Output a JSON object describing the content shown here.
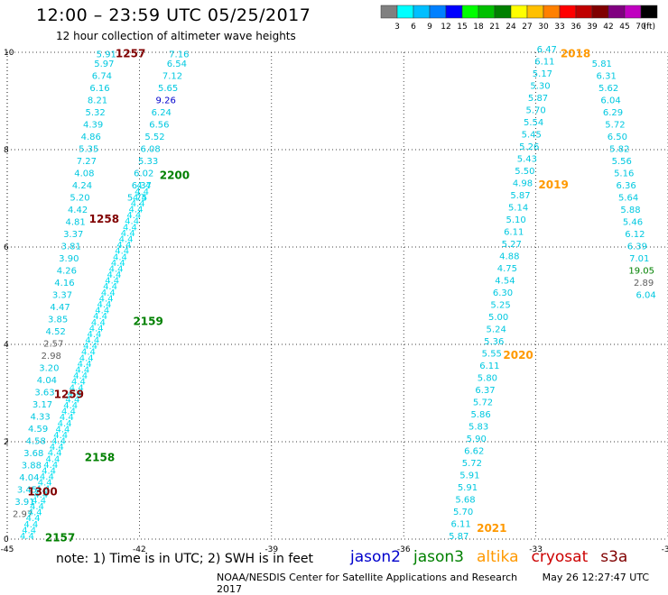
{
  "header": {
    "title": "12:00 – 23:59 UTC 05/25/2017",
    "subtitle": "12 hour collection of altimeter wave heights"
  },
  "colorbar": {
    "unit": "(ft)",
    "ticks": [
      "3",
      "6",
      "9",
      "12",
      "15",
      "18",
      "21",
      "24",
      "27",
      "30",
      "33",
      "36",
      "39",
      "42",
      "45",
      "70"
    ],
    "colors": [
      "#808080",
      "#00ffff",
      "#00bfff",
      "#0080ff",
      "#0000ff",
      "#00ff00",
      "#00c000",
      "#008000",
      "#ffff00",
      "#ffc000",
      "#ff8000",
      "#ff0000",
      "#c00000",
      "#800000",
      "#800080",
      "#c000c0",
      "#000000"
    ]
  },
  "chart_data": {
    "type": "scatter",
    "title": "12:00 – 23:59 UTC 05/25/2017",
    "xlim": [
      -45,
      -30
    ],
    "ylim": [
      0,
      10
    ],
    "x_ticks": [
      "-45",
      "-42",
      "-39",
      "-36",
      "-33",
      "-30"
    ],
    "y_ticks": [
      "0",
      "2",
      "4",
      "6",
      "8",
      "10"
    ],
    "grid": "dotted",
    "time_labels": [
      {
        "text": "1257",
        "x": -42.2,
        "y": 9.9,
        "color": "#800000"
      },
      {
        "text": "1258",
        "x": -42.8,
        "y": 6.5,
        "color": "#800000"
      },
      {
        "text": "1259",
        "x": -43.6,
        "y": 2.9,
        "color": "#800000"
      },
      {
        "text": "1300",
        "x": -44.2,
        "y": 0.9,
        "color": "#800000"
      },
      {
        "text": "2200",
        "x": -41.2,
        "y": 7.4,
        "color": "#008000"
      },
      {
        "text": "2159",
        "x": -41.8,
        "y": 4.4,
        "color": "#008000"
      },
      {
        "text": "2158",
        "x": -42.9,
        "y": 1.6,
        "color": "#008000"
      },
      {
        "text": "2157",
        "x": -43.8,
        "y": -0.05,
        "color": "#008000"
      },
      {
        "text": "2018",
        "x": -32.1,
        "y": 9.9,
        "color": "#ff9900"
      },
      {
        "text": "2019",
        "x": -32.6,
        "y": 7.2,
        "color": "#ff9900"
      },
      {
        "text": "2020",
        "x": -33.4,
        "y": 3.7,
        "color": "#ff9900"
      },
      {
        "text": "2021",
        "x": -34.0,
        "y": 0.15,
        "color": "#ff9900"
      }
    ],
    "tracks": [
      {
        "color": "#00c8e0",
        "points": [
          {
            "x": -42.75,
            "y": 9.9,
            "v": "5.91"
          },
          {
            "x": -42.8,
            "y": 9.7,
            "v": "5.97"
          },
          {
            "x": -42.85,
            "y": 9.45,
            "v": "6.74"
          },
          {
            "x": -42.9,
            "y": 9.2,
            "v": "6.16"
          },
          {
            "x": -42.95,
            "y": 8.95,
            "v": "8.21"
          },
          {
            "x": -43.0,
            "y": 8.7,
            "v": "5.32"
          },
          {
            "x": -43.05,
            "y": 8.45,
            "v": "4.39"
          },
          {
            "x": -43.1,
            "y": 8.2,
            "v": "4.86"
          },
          {
            "x": -43.15,
            "y": 7.95,
            "v": "5.35"
          },
          {
            "x": -43.2,
            "y": 7.7,
            "v": "7.27"
          },
          {
            "x": -43.25,
            "y": 7.45,
            "v": "4.08"
          },
          {
            "x": -43.3,
            "y": 7.2,
            "v": "4.24"
          },
          {
            "x": -43.35,
            "y": 6.95,
            "v": "5.20"
          },
          {
            "x": -43.4,
            "y": 6.7,
            "v": "4.42"
          },
          {
            "x": -43.45,
            "y": 6.45,
            "v": "4.81"
          },
          {
            "x": -43.5,
            "y": 6.2,
            "v": "3.37"
          },
          {
            "x": -43.55,
            "y": 5.95,
            "v": "3.81"
          },
          {
            "x": -43.6,
            "y": 5.7,
            "v": "3.90"
          },
          {
            "x": -43.65,
            "y": 5.45,
            "v": "4.26"
          },
          {
            "x": -43.7,
            "y": 5.2,
            "v": "4.16"
          },
          {
            "x": -43.75,
            "y": 4.95,
            "v": "3.37"
          },
          {
            "x": -43.8,
            "y": 4.7,
            "v": "4.47"
          },
          {
            "x": -43.85,
            "y": 4.45,
            "v": "3.85"
          },
          {
            "x": -43.9,
            "y": 4.2,
            "v": "4.52"
          },
          {
            "x": -43.95,
            "y": 3.95,
            "v": "2.57"
          },
          {
            "x": -44.0,
            "y": 3.7,
            "v": "2.98"
          },
          {
            "x": -44.05,
            "y": 3.45,
            "v": "3.20"
          },
          {
            "x": -44.1,
            "y": 3.2,
            "v": "4.04"
          },
          {
            "x": -44.15,
            "y": 2.95,
            "v": "3.63"
          },
          {
            "x": -44.2,
            "y": 2.7,
            "v": "3.17"
          },
          {
            "x": -44.25,
            "y": 2.45,
            "v": "4.33"
          },
          {
            "x": -44.3,
            "y": 2.2,
            "v": "4.59"
          },
          {
            "x": -44.35,
            "y": 1.95,
            "v": "4.58"
          },
          {
            "x": -44.4,
            "y": 1.7,
            "v": "3.68"
          },
          {
            "x": -44.45,
            "y": 1.45,
            "v": "3.88"
          },
          {
            "x": -44.5,
            "y": 1.2,
            "v": "4.04"
          },
          {
            "x": -44.55,
            "y": 0.95,
            "v": "3.45"
          },
          {
            "x": -44.6,
            "y": 0.7,
            "v": "3.91"
          },
          {
            "x": -44.65,
            "y": 0.45,
            "v": "2.97"
          }
        ]
      },
      {
        "color": "#00c8e0",
        "points": [
          {
            "x": -41.1,
            "y": 9.9,
            "v": "7.16"
          },
          {
            "x": -41.15,
            "y": 9.7,
            "v": "6.54"
          },
          {
            "x": -41.25,
            "y": 9.45,
            "v": "7.12"
          },
          {
            "x": -41.35,
            "y": 9.2,
            "v": "5.65"
          },
          {
            "x": -41.4,
            "y": 8.95,
            "v": "9.26"
          },
          {
            "x": -41.5,
            "y": 8.7,
            "v": "6.24"
          },
          {
            "x": -41.55,
            "y": 8.45,
            "v": "6.56"
          },
          {
            "x": -41.65,
            "y": 8.2,
            "v": "5.52"
          },
          {
            "x": -41.75,
            "y": 7.95,
            "v": "6.08"
          },
          {
            "x": -41.8,
            "y": 7.7,
            "v": "5.33"
          },
          {
            "x": -41.9,
            "y": 7.45,
            "v": "6.02"
          },
          {
            "x": -41.95,
            "y": 7.2,
            "v": "6.37"
          },
          {
            "x": -42.05,
            "y": 6.95,
            "v": "5.75"
          }
        ]
      },
      {
        "color": "#00c8e0",
        "points": [
          {
            "x": -32.75,
            "y": 10.0,
            "v": "6.47"
          },
          {
            "x": -32.8,
            "y": 9.75,
            "v": "6.11"
          },
          {
            "x": -32.85,
            "y": 9.5,
            "v": "5.17"
          },
          {
            "x": -32.9,
            "y": 9.25,
            "v": "5.30"
          },
          {
            "x": -32.95,
            "y": 9.0,
            "v": "5.87"
          },
          {
            "x": -33.0,
            "y": 8.75,
            "v": "5.70"
          },
          {
            "x": -33.05,
            "y": 8.5,
            "v": "5.54"
          },
          {
            "x": -33.1,
            "y": 8.25,
            "v": "5.45"
          },
          {
            "x": -33.15,
            "y": 8.0,
            "v": "5.26"
          },
          {
            "x": -33.2,
            "y": 7.75,
            "v": "5.43"
          },
          {
            "x": -33.25,
            "y": 7.5,
            "v": "5.50"
          },
          {
            "x": -33.3,
            "y": 7.25,
            "v": "4.98"
          },
          {
            "x": -33.35,
            "y": 7.0,
            "v": "5.87"
          },
          {
            "x": -33.4,
            "y": 6.75,
            "v": "5.14"
          },
          {
            "x": -33.45,
            "y": 6.5,
            "v": "5.10"
          },
          {
            "x": -33.5,
            "y": 6.25,
            "v": "6.11"
          },
          {
            "x": -33.55,
            "y": 6.0,
            "v": "5.27"
          },
          {
            "x": -33.6,
            "y": 5.75,
            "v": "4.88"
          },
          {
            "x": -33.65,
            "y": 5.5,
            "v": "4.75"
          },
          {
            "x": -33.7,
            "y": 5.25,
            "v": "4.54"
          },
          {
            "x": -33.75,
            "y": 5.0,
            "v": "6.30"
          },
          {
            "x": -33.8,
            "y": 4.75,
            "v": "5.25"
          },
          {
            "x": -33.85,
            "y": 4.5,
            "v": "5.00"
          },
          {
            "x": -33.9,
            "y": 4.25,
            "v": "5.24"
          },
          {
            "x": -33.95,
            "y": 4.0,
            "v": "5.36"
          },
          {
            "x": -34.0,
            "y": 3.75,
            "v": "5.55"
          },
          {
            "x": -34.05,
            "y": 3.5,
            "v": "6.11"
          },
          {
            "x": -34.1,
            "y": 3.25,
            "v": "5.80"
          },
          {
            "x": -34.15,
            "y": 3.0,
            "v": "6.37"
          },
          {
            "x": -34.2,
            "y": 2.75,
            "v": "5.72"
          },
          {
            "x": -34.25,
            "y": 2.5,
            "v": "5.86"
          },
          {
            "x": -34.3,
            "y": 2.25,
            "v": "5.83"
          },
          {
            "x": -34.35,
            "y": 2.0,
            "v": "5.90"
          },
          {
            "x": -34.4,
            "y": 1.75,
            "v": "6.62"
          },
          {
            "x": -34.45,
            "y": 1.5,
            "v": "5.72"
          },
          {
            "x": -34.5,
            "y": 1.25,
            "v": "5.91"
          },
          {
            "x": -34.55,
            "y": 1.0,
            "v": "5.91"
          },
          {
            "x": -34.6,
            "y": 0.75,
            "v": "5.68"
          },
          {
            "x": -34.65,
            "y": 0.5,
            "v": "5.70"
          },
          {
            "x": -34.7,
            "y": 0.25,
            "v": "6.11"
          },
          {
            "x": -34.75,
            "y": 0.0,
            "v": "5.87"
          }
        ]
      },
      {
        "color": "#00c8e0",
        "points": [
          {
            "x": -31.5,
            "y": 9.7,
            "v": "5.81"
          },
          {
            "x": -31.4,
            "y": 9.45,
            "v": "6.31"
          },
          {
            "x": -31.35,
            "y": 9.2,
            "v": "5.62"
          },
          {
            "x": -31.3,
            "y": 8.95,
            "v": "6.04"
          },
          {
            "x": -31.25,
            "y": 8.7,
            "v": "6.29"
          },
          {
            "x": -31.2,
            "y": 8.45,
            "v": "5.72"
          },
          {
            "x": -31.15,
            "y": 8.2,
            "v": "6.50"
          },
          {
            "x": -31.1,
            "y": 7.95,
            "v": "5.82"
          },
          {
            "x": -31.05,
            "y": 7.7,
            "v": "5.56"
          },
          {
            "x": -31.0,
            "y": 7.45,
            "v": "5.16"
          },
          {
            "x": -30.95,
            "y": 7.2,
            "v": "6.36"
          },
          {
            "x": -30.9,
            "y": 6.95,
            "v": "5.64"
          },
          {
            "x": -30.85,
            "y": 6.7,
            "v": "5.88"
          },
          {
            "x": -30.8,
            "y": 6.45,
            "v": "5.46"
          },
          {
            "x": -30.75,
            "y": 6.2,
            "v": "6.12"
          },
          {
            "x": -30.7,
            "y": 5.95,
            "v": "6.39"
          },
          {
            "x": -30.65,
            "y": 5.7,
            "v": "7.01"
          },
          {
            "x": -30.6,
            "y": 5.45,
            "v": "19.05"
          },
          {
            "x": -30.55,
            "y": 5.2,
            "v": "2.89"
          },
          {
            "x": -30.5,
            "y": 4.95,
            "v": "6.04"
          }
        ]
      },
      {
        "color": "#00e0f0",
        "dense": true,
        "from": {
          "x": -41.9,
          "y": 7.2
        },
        "to": {
          "x": -44.55,
          "y": 0.0
        }
      }
    ]
  },
  "footer": {
    "note": "note:  1) Time is in UTC; 2) SWH is in feet",
    "legend": [
      {
        "label": "jason2",
        "color": "#0000cc"
      },
      {
        "label": "jason3",
        "color": "#008000"
      },
      {
        "label": "altika",
        "color": "#ff9900"
      },
      {
        "label": "cryosat",
        "color": "#cc0000"
      },
      {
        "label": "s3a",
        "color": "#800000"
      }
    ],
    "credit": "NOAA/NESDIS Center for Satellite Applications and Research",
    "timestamp": "May 26 12:27:47 UTC 2017"
  }
}
